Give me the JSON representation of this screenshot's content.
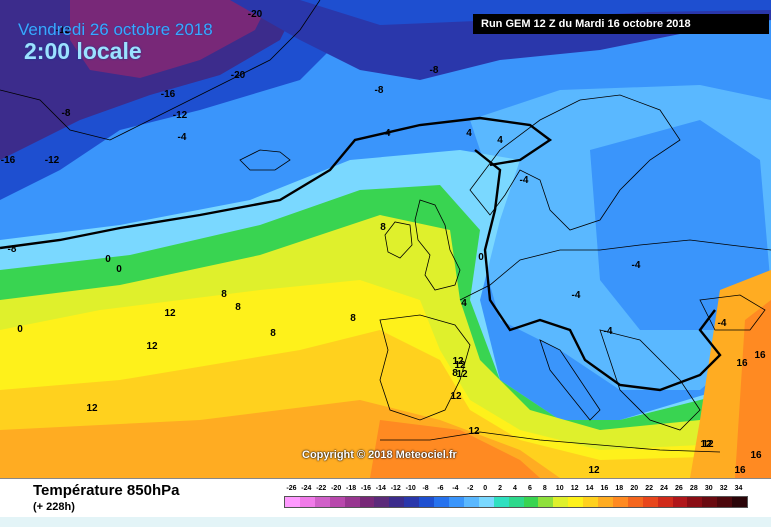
{
  "header": {
    "date_title": "Vendredi 26 octobre 2018",
    "time_title": "2:00 locale",
    "run_info": "Run GEM 12 Z du Mardi 16 octobre 2018"
  },
  "copyright": "Copyright © 2018 Meteociel.fr",
  "legend": {
    "field_title": "Température 850hPa",
    "lead_time": "(+ 228h)",
    "scale": [
      {
        "value": "-26",
        "color": "#ff9aff"
      },
      {
        "value": "-24",
        "color": "#f07ae8"
      },
      {
        "value": "-22",
        "color": "#d060c8"
      },
      {
        "value": "-20",
        "color": "#b848ac"
      },
      {
        "value": "-18",
        "color": "#983690"
      },
      {
        "value": "-16",
        "color": "#782878"
      },
      {
        "value": "-14",
        "color": "#5c2a7a"
      },
      {
        "value": "-12",
        "color": "#3c2c8c"
      },
      {
        "value": "-10",
        "color": "#2a37ab"
      },
      {
        "value": "-8",
        "color": "#1e4fd0"
      },
      {
        "value": "-6",
        "color": "#2672ee"
      },
      {
        "value": "-4",
        "color": "#3a95fb"
      },
      {
        "value": "-2",
        "color": "#5ab8ff"
      },
      {
        "value": "0",
        "color": "#7ad8ff"
      },
      {
        "value": "2",
        "color": "#2fe0c0"
      },
      {
        "value": "4",
        "color": "#2ed88c"
      },
      {
        "value": "6",
        "color": "#39d451"
      },
      {
        "value": "8",
        "color": "#8fe03c"
      },
      {
        "value": "10",
        "color": "#dff02c"
      },
      {
        "value": "12",
        "color": "#fef11b"
      },
      {
        "value": "14",
        "color": "#ffd11e"
      },
      {
        "value": "16",
        "color": "#ffac22"
      },
      {
        "value": "18",
        "color": "#ff8a22"
      },
      {
        "value": "20",
        "color": "#f4661e"
      },
      {
        "value": "22",
        "color": "#e8461c"
      },
      {
        "value": "24",
        "color": "#d02a1a"
      },
      {
        "value": "26",
        "color": "#b0161a"
      },
      {
        "value": "28",
        "color": "#8a0d14"
      },
      {
        "value": "30",
        "color": "#6a0a10"
      },
      {
        "value": "32",
        "color": "#4c070c"
      },
      {
        "value": "34",
        "color": "#2a0408"
      }
    ]
  },
  "map_labels": [
    {
      "text": "-20"
    },
    {
      "text": "-12"
    },
    {
      "text": "-8"
    },
    {
      "text": "-16"
    },
    {
      "text": "-12"
    },
    {
      "text": "-20"
    },
    {
      "text": "-8"
    },
    {
      "text": "-8"
    },
    {
      "text": "-16"
    },
    {
      "text": "-12"
    },
    {
      "text": "-4"
    },
    {
      "text": "-4"
    },
    {
      "text": "4"
    },
    {
      "text": "4"
    },
    {
      "text": "-4"
    },
    {
      "text": "-8"
    },
    {
      "text": "0"
    },
    {
      "text": "0"
    },
    {
      "text": "8"
    },
    {
      "text": "0"
    },
    {
      "text": "4"
    },
    {
      "text": "-4"
    },
    {
      "text": "-4"
    },
    {
      "text": "-4"
    },
    {
      "text": "-4"
    },
    {
      "text": "0"
    },
    {
      "text": "8"
    },
    {
      "text": "12"
    },
    {
      "text": "8"
    },
    {
      "text": "8"
    },
    {
      "text": "12"
    },
    {
      "text": "8"
    },
    {
      "text": "12"
    },
    {
      "text": "12"
    },
    {
      "text": "8"
    },
    {
      "text": "12"
    },
    {
      "text": "12"
    },
    {
      "text": "12"
    },
    {
      "text": "12"
    },
    {
      "text": "16"
    },
    {
      "text": "16"
    },
    {
      "text": "16"
    },
    {
      "text": "12"
    },
    {
      "text": "12"
    },
    {
      "text": "16"
    },
    {
      "text": "12"
    }
  ]
}
